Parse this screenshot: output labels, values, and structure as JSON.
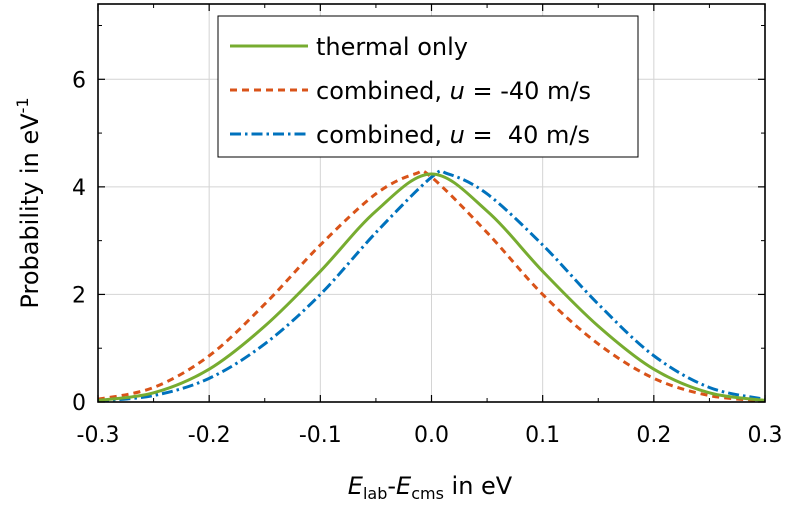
{
  "chart_data": {
    "type": "line",
    "xlabel": {
      "main1": "E",
      "sub1": "lab",
      "sep": "-",
      "main2": "E",
      "sub2": "cms",
      "suffix": " in eV"
    },
    "ylabel": {
      "main": "Probability in eV",
      "sup": "-1"
    },
    "xlim": [
      -0.3,
      0.3
    ],
    "ylim": [
      0,
      7.4
    ],
    "xticks": [
      -0.3,
      -0.2,
      -0.1,
      0.0,
      0.1,
      0.2,
      0.3
    ],
    "xtick_labels": [
      "-0.3",
      "-0.2",
      "-0.1",
      "0.0",
      "0.1",
      "0.2",
      "0.3"
    ],
    "yticks": [
      0,
      2,
      4,
      6
    ],
    "ytick_labels": [
      "0",
      "2",
      "4",
      "6"
    ],
    "grid": true,
    "legend_position": "top-center",
    "series": [
      {
        "name": "thermal only",
        "legend": {
          "before": "thermal only",
          "var": "",
          "after": ""
        },
        "color": "#77ac30",
        "style": "solid",
        "x": [
          -0.3,
          -0.25,
          -0.2,
          -0.15,
          -0.1,
          -0.05,
          0.0,
          0.05,
          0.1,
          0.15,
          0.2,
          0.25,
          0.3
        ],
        "y": [
          0.03,
          0.17,
          0.61,
          1.41,
          2.43,
          3.55,
          4.24,
          3.55,
          2.43,
          1.41,
          0.61,
          0.17,
          0.03
        ]
      },
      {
        "name": "combined, u = -40 m/s",
        "legend": {
          "before": "combined, ",
          "var": "u",
          "after": " = -40 m/s"
        },
        "color": "#d95319",
        "style": "dashed",
        "x": [
          -0.3,
          -0.25,
          -0.2,
          -0.15,
          -0.1,
          -0.05,
          -0.015,
          0.0,
          0.05,
          0.1,
          0.15,
          0.2,
          0.25,
          0.3
        ],
        "y": [
          0.05,
          0.27,
          0.86,
          1.82,
          2.92,
          3.87,
          4.24,
          4.18,
          3.15,
          2.0,
          1.08,
          0.44,
          0.12,
          0.02
        ]
      },
      {
        "name": "combined, u = 40 m/s",
        "legend": {
          "before": "combined, ",
          "var": "u",
          "after": " =  40 m/s"
        },
        "color": "#0072bd",
        "style": "dashdot",
        "x": [
          -0.3,
          -0.25,
          -0.2,
          -0.15,
          -0.1,
          -0.05,
          0.0,
          0.015,
          0.05,
          0.1,
          0.15,
          0.2,
          0.25,
          0.3
        ],
        "y": [
          0.02,
          0.12,
          0.44,
          1.08,
          2.0,
          3.15,
          4.18,
          4.24,
          3.87,
          2.92,
          1.82,
          0.86,
          0.27,
          0.05
        ]
      }
    ]
  }
}
